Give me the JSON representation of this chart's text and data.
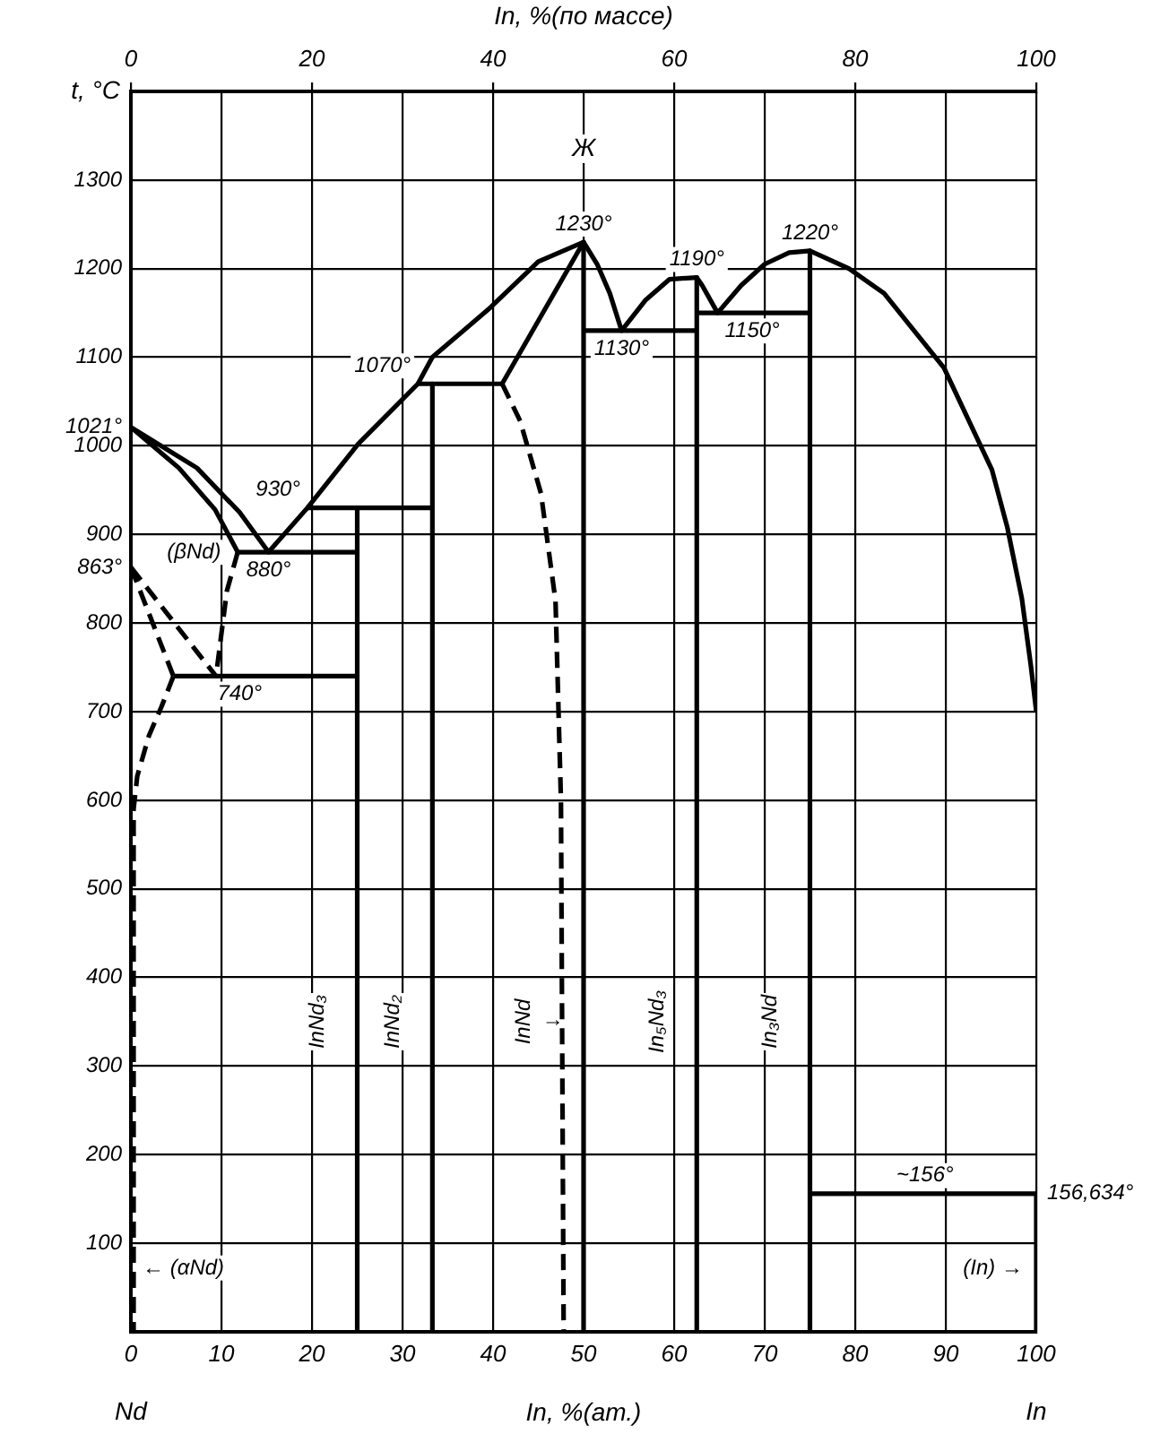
{
  "chart_data": {
    "type": "line",
    "xlabel": "In, %(ат.)",
    "ylabel": "t, °C",
    "x2label": "In, %(по массе)",
    "xlim": [
      0,
      100
    ],
    "xticks": [
      0,
      10,
      20,
      30,
      40,
      50,
      60,
      70,
      80,
      90,
      100
    ],
    "ylim": [
      0,
      1400
    ],
    "yticks": [
      100,
      200,
      300,
      400,
      500,
      600,
      700,
      800,
      {
        "value": 863,
        "label": "863°"
      },
      900,
      1000,
      {
        "value": 1021,
        "label": "1021°"
      },
      1100,
      1200,
      1300
    ],
    "x2lim": [
      0,
      100
    ],
    "x2ticks": [
      0,
      20,
      40,
      60,
      80,
      100
    ],
    "grid": true,
    "legend": false,
    "marker": "none",
    "line_style": "solid",
    "series": [
      {
        "color": "#000000",
        "x": [
          0,
          7.3,
          12,
          15.2,
          19.5,
          25.1,
          31.7,
          33.3,
          39.7,
          45,
          50,
          51.5,
          52.9,
          54.2,
          56.8,
          59.5,
          62.5,
          63.1,
          64.8,
          67.4,
          70,
          72.7,
          75,
          79.3,
          83.2,
          89.8,
          95.1,
          96.8,
          98.4,
          99.4,
          100
        ],
        "values": [
          1021,
          975,
          925,
          880,
          930,
          1002,
          1070,
          1100,
          1156,
          1208,
          1230,
          1205,
          1172,
          1130,
          1164,
          1188,
          1190,
          1181,
          1150,
          1181,
          1205,
          1218,
          1220,
          1200,
          1172,
          1088,
          973,
          908,
          828,
          752,
          700
        ]
      },
      {
        "color": "#000000",
        "x": [
          0,
          5.3,
          9.3,
          11.8
        ],
        "values": [
          1021,
          975,
          928,
          880
        ]
      },
      {
        "color": "#000000",
        "line_style": "dashed",
        "x": [
          11.8,
          10.6,
          10,
          9.4
        ],
        "values": [
          880,
          836,
          788,
          740
        ]
      },
      {
        "color": "#000000",
        "line_style": "dashed",
        "x": [
          0,
          9.4
        ],
        "values": [
          863,
          740
        ]
      },
      {
        "color": "#000000",
        "line_style": "dashed",
        "x": [
          0,
          4.7
        ],
        "values": [
          863,
          740
        ]
      },
      {
        "color": "#000000",
        "line_style": "dashed",
        "x": [
          4.7,
          3.4,
          2,
          0.7,
          0.3,
          0.3
        ],
        "values": [
          740,
          706,
          673,
          627,
          590,
          0
        ]
      },
      {
        "color": "#000000",
        "x": [
          41,
          50
        ],
        "values": [
          1070,
          1230
        ]
      },
      {
        "name": "InNd",
        "color": "#000000",
        "line_style": "dashed",
        "x": [
          41,
          43,
          45.3,
          46.9,
          47.5,
          47.8
        ],
        "values": [
          1070,
          1028,
          946,
          825,
          600,
          0
        ]
      },
      {
        "color": "#000000",
        "x": [
          4.7,
          25
        ],
        "values": [
          740,
          740
        ]
      },
      {
        "color": "#000000",
        "x": [
          11.8,
          25
        ],
        "values": [
          880,
          880
        ]
      },
      {
        "color": "#000000",
        "x": [
          19.5,
          33.3
        ],
        "values": [
          930,
          930
        ]
      },
      {
        "color": "#000000",
        "x": [
          31.7,
          41
        ],
        "values": [
          1070,
          1070
        ]
      },
      {
        "color": "#000000",
        "x": [
          50,
          62.5
        ],
        "values": [
          1130,
          1130
        ]
      },
      {
        "color": "#000000",
        "x": [
          62.5,
          75
        ],
        "values": [
          1150,
          1150
        ]
      },
      {
        "color": "#000000",
        "x": [
          75,
          100
        ],
        "values": [
          156,
          156
        ]
      },
      {
        "color": "#000000",
        "x": [
          100,
          100
        ],
        "values": [
          156,
          0
        ]
      },
      {
        "name": "InNd₃",
        "color": "#000000",
        "x": [
          25,
          25
        ],
        "values": [
          930,
          0
        ]
      },
      {
        "name": "InNd₂",
        "color": "#000000",
        "x": [
          33.3,
          33.3
        ],
        "values": [
          1070,
          0
        ]
      },
      {
        "color": "#000000",
        "x": [
          50,
          50
        ],
        "values": [
          1230,
          0
        ]
      },
      {
        "name": "In₅Nd₃",
        "color": "#000000",
        "x": [
          62.5,
          62.5
        ],
        "values": [
          1190,
          0
        ]
      },
      {
        "name": "In₃Nd",
        "color": "#000000",
        "x": [
          75,
          75
        ],
        "values": [
          1220,
          0
        ]
      }
    ],
    "annotations": [
      "Nd",
      "Ж",
      "In",
      {
        "text": "156,634°",
        "x": 100,
        "y": 156.634
      },
      {
        "text": "1230°",
        "x": 50,
        "y": 1230
      },
      {
        "text": "1190°",
        "x": 62.5,
        "y": 1190
      },
      {
        "text": "1220°",
        "x": 75,
        "y": 1220
      },
      {
        "text": "1070°",
        "x": 31.7,
        "y": 1070
      },
      {
        "text": "1130°",
        "x": 54.2,
        "y": 1130
      },
      {
        "text": "1150°",
        "x": 64.8,
        "y": 1150
      },
      {
        "text": "930°",
        "x": 19.5,
        "y": 930
      },
      {
        "text": "880°",
        "x": 15.2,
        "y": 880
      },
      {
        "text": "740°",
        "x": 12,
        "y": 740
      },
      {
        "text": "(βNd)",
        "x": 10.75,
        "y": 900
      },
      {
        "text": "~156°",
        "x": 87.7,
        "y": 156
      },
      {
        "text": "← (αNd)",
        "x": 0.3,
        "y": 72
      },
      {
        "text": "(In) →",
        "x": 99.5,
        "y": 72
      },
      {
        "text": "→",
        "x": 46.6,
        "y": 352
      }
    ]
  }
}
